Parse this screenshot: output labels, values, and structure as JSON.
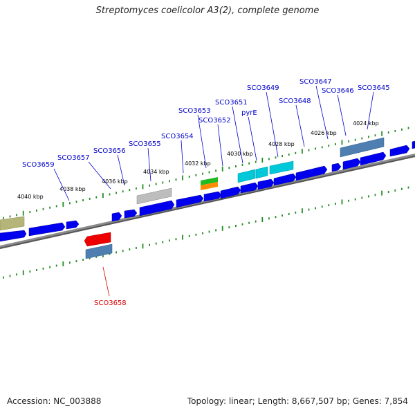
{
  "title": "Streptomyces coelicolor A3(2), complete genome",
  "footer": {
    "accession": "Accession: NC_003888",
    "topology": "Topology: linear; Length: 8,667,507 bp; Genes: 7,854"
  },
  "colors": {
    "forward_gene": "#0000ff",
    "reverse_gene": "#0000ff",
    "backbone": "#888888",
    "tick": "#228b22",
    "label_forward": "#0000cc",
    "label_reverse": "#dd0000"
  },
  "ruler": {
    "labels": [
      "4040 kbp",
      "4038 kbp",
      "4036 kbp",
      "4034 kbp",
      "4032 kbp",
      "4030 kbp",
      "4028 kbp",
      "4026 kbp",
      "4024 kbp"
    ]
  },
  "gene_labels": [
    {
      "id": "SCO3659",
      "color": "blue"
    },
    {
      "id": "SCO3657",
      "color": "blue"
    },
    {
      "id": "SCO3656",
      "color": "blue"
    },
    {
      "id": "SCO3655",
      "color": "blue"
    },
    {
      "id": "SCO3654",
      "color": "blue"
    },
    {
      "id": "SCO3653",
      "color": "blue"
    },
    {
      "id": "SCO3652",
      "color": "blue"
    },
    {
      "id": "SCO3651",
      "color": "blue"
    },
    {
      "id": "pyrE",
      "color": "blue"
    },
    {
      "id": "SCO3649",
      "color": "blue"
    },
    {
      "id": "SCO3648",
      "color": "blue"
    },
    {
      "id": "SCO3647",
      "color": "blue"
    },
    {
      "id": "SCO3646",
      "color": "blue"
    },
    {
      "id": "SCO3645",
      "color": "blue"
    },
    {
      "id": "SCO3658",
      "color": "red"
    }
  ]
}
